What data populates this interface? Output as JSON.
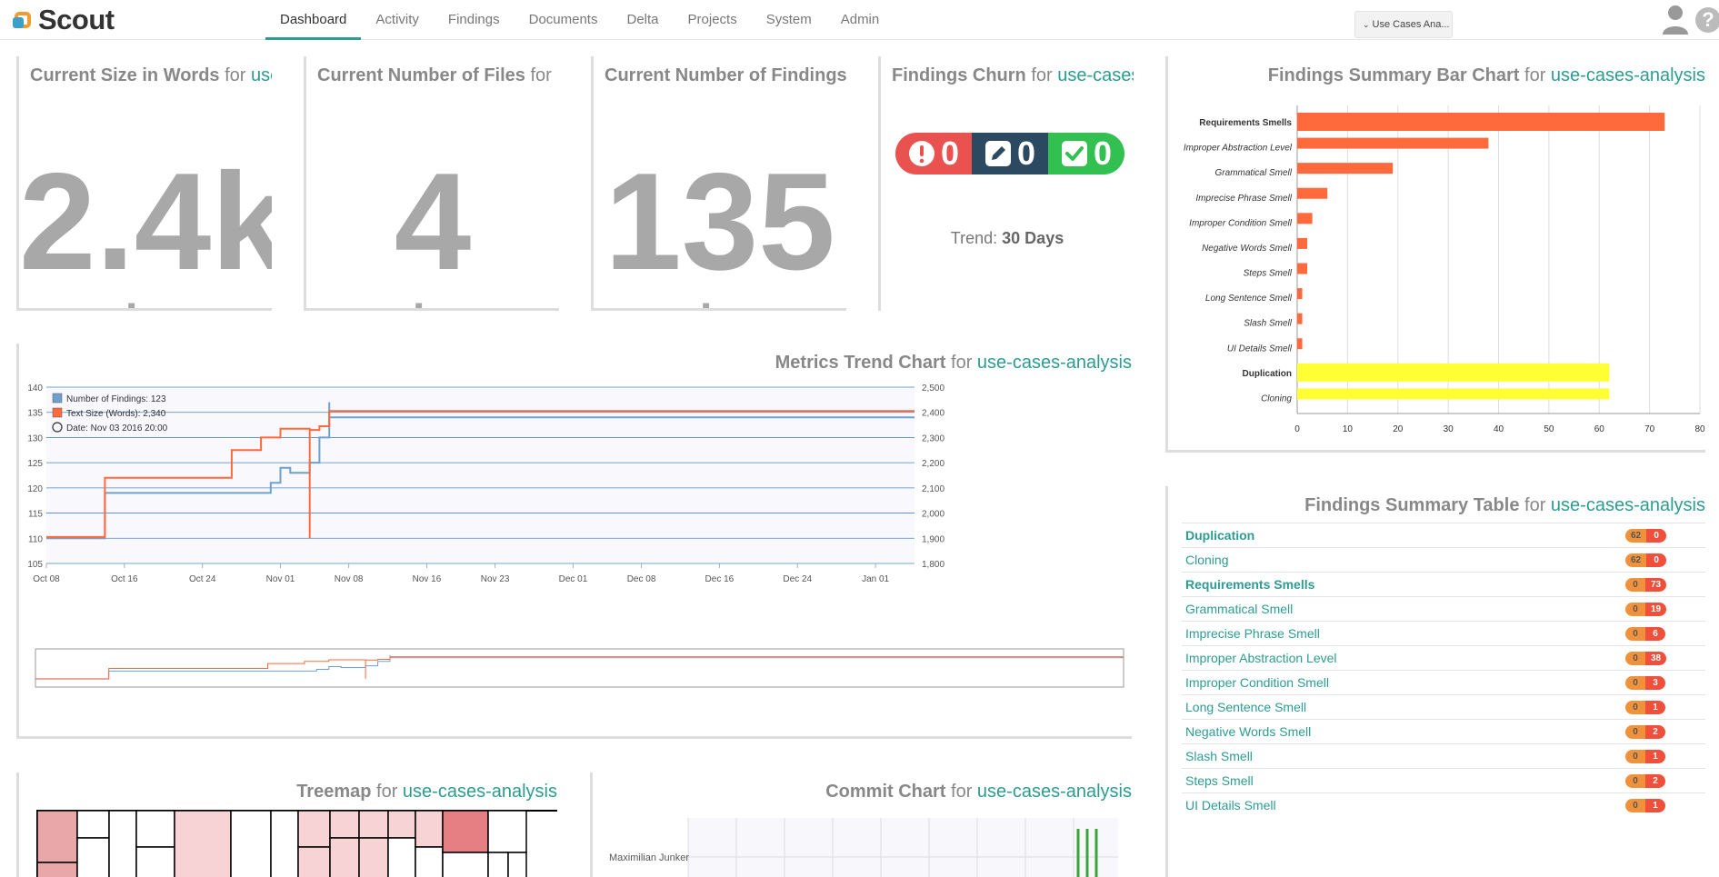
{
  "app": {
    "name": "Scout"
  },
  "nav": {
    "tabs": [
      {
        "label": "Dashboard"
      },
      {
        "label": "Activity"
      },
      {
        "label": "Findings"
      },
      {
        "label": "Documents"
      },
      {
        "label": "Delta"
      },
      {
        "label": "Projects"
      },
      {
        "label": "System"
      },
      {
        "label": "Admin"
      }
    ],
    "project_select": "Use Cases Ana..."
  },
  "widgets": {
    "for_word": "for",
    "project": "use-cases-analysis",
    "size": {
      "title": "Current Size in Words",
      "project_visible": "use",
      "value": "2.4k",
      "change": "no change"
    },
    "files": {
      "title": "Current Number of Files",
      "value": "4",
      "change": "no change"
    },
    "findings": {
      "title": "Current Number of Findings",
      "value": "135",
      "change": "no change"
    },
    "churn": {
      "title": "Findings Churn",
      "added": "0",
      "changed": "0",
      "removed": "0",
      "trend_label": "Trend:",
      "trend_value": "30 Days",
      "colors": {
        "added": "#e9524f",
        "changed": "#2b4a61",
        "removed": "#32c050"
      }
    },
    "trend": {
      "title": "Metrics Trend Chart"
    },
    "bar": {
      "title": "Findings Summary Bar Chart"
    },
    "table": {
      "title": "Findings Summary Table"
    },
    "treemap": {
      "title": "Treemap"
    },
    "commit": {
      "title": "Commit Chart",
      "author": "Maximilian Junker"
    }
  },
  "chart_data": [
    {
      "type": "line",
      "title": "Metrics Trend Chart",
      "x_labels": [
        "Oct 08",
        "Oct 16",
        "Oct 24",
        "Nov 01",
        "Nov 08",
        "Nov 16",
        "Nov 23",
        "Dec 01",
        "Dec 08",
        "Dec 16",
        "Dec 24",
        "Jan 01"
      ],
      "y_left": {
        "ticks": [
          "140",
          "135",
          "130",
          "125",
          "120",
          "115",
          "110",
          "105"
        ],
        "range": [
          105,
          140
        ]
      },
      "y_right": {
        "ticks": [
          "2,500",
          "2,400",
          "2,300",
          "2,200",
          "2,100",
          "2,000",
          "1,900",
          "1,800"
        ],
        "range": [
          1800,
          2500
        ]
      },
      "legend": [
        {
          "name": "Number of Findings: 123",
          "color": "#6ea1cf"
        },
        {
          "name": "Text Size (Words): 2,340",
          "color": "#ff6a3d"
        },
        {
          "name": "Date: Nov 03 2016 20:00"
        }
      ],
      "series": [
        {
          "name": "Number of Findings",
          "axis": "left",
          "points": [
            [
              "2016-10-08",
              110
            ],
            [
              "2016-10-14",
              110
            ],
            [
              "2016-10-14",
              119
            ],
            [
              "2016-10-31",
              119
            ],
            [
              "2016-10-31",
              121
            ],
            [
              "2016-11-01",
              121
            ],
            [
              "2016-11-01",
              124
            ],
            [
              "2016-11-02",
              124
            ],
            [
              "2016-11-02",
              123
            ],
            [
              "2016-11-04",
              123
            ],
            [
              "2016-11-04",
              125
            ],
            [
              "2016-11-05",
              125
            ],
            [
              "2016-11-05",
              130
            ],
            [
              "2016-11-06",
              130
            ],
            [
              "2016-11-06",
              137
            ],
            [
              "2016-11-06",
              134
            ],
            [
              "2017-01-05",
              134
            ]
          ]
        },
        {
          "name": "Text Size (Words)",
          "axis": "right",
          "points": [
            [
              "2016-10-08",
              1905
            ],
            [
              "2016-10-14",
              1905
            ],
            [
              "2016-10-14",
              2140
            ],
            [
              "2016-10-27",
              2140
            ],
            [
              "2016-10-27",
              2250
            ],
            [
              "2016-10-30",
              2250
            ],
            [
              "2016-10-30",
              2300
            ],
            [
              "2016-11-01",
              2300
            ],
            [
              "2016-11-01",
              2335
            ],
            [
              "2016-11-04",
              2335
            ],
            [
              "2016-11-04",
              1900
            ],
            [
              "2016-11-04",
              2330
            ],
            [
              "2016-11-05",
              2330
            ],
            [
              "2016-11-05",
              2345
            ],
            [
              "2016-11-06",
              2345
            ],
            [
              "2016-11-06",
              2405
            ],
            [
              "2017-01-05",
              2405
            ]
          ]
        }
      ]
    },
    {
      "type": "bar",
      "title": "Findings Summary Bar Chart",
      "categories": [
        "Requirements Smells",
        "Improper Abstraction Level",
        "Grammatical Smell",
        "Imprecise Phrase Smell",
        "Improper Condition Smell",
        "Negative Words Smell",
        "Steps Smell",
        "Long Sentence Smell",
        "Slash Smell",
        "UI Details Smell",
        "Duplication",
        "Cloning"
      ],
      "bold_categories": [
        "Requirements Smells",
        "Duplication"
      ],
      "values": [
        73,
        38,
        19,
        6,
        3,
        2,
        2,
        1,
        1,
        1,
        62,
        62
      ],
      "colors": [
        "#ff6a3d",
        "#ff6a3d",
        "#ff6a3d",
        "#ff6a3d",
        "#ff6a3d",
        "#ff6a3d",
        "#ff6a3d",
        "#ff6a3d",
        "#ff6a3d",
        "#ff6a3d",
        "#ffff33",
        "#ffff33"
      ],
      "x_ticks": [
        "0",
        "10",
        "20",
        "30",
        "40",
        "50",
        "60",
        "70",
        "80"
      ],
      "xlim": [
        0,
        80
      ],
      "grid": true
    },
    {
      "type": "table",
      "title": "Findings Summary Table",
      "rows": [
        {
          "label": "Duplication",
          "bold": true,
          "a": "62",
          "b": "0"
        },
        {
          "label": "Cloning",
          "bold": false,
          "a": "62",
          "b": "0"
        },
        {
          "label": "Requirements Smells",
          "bold": true,
          "a": "0",
          "b": "73"
        },
        {
          "label": "Grammatical Smell",
          "bold": false,
          "a": "0",
          "b": "19"
        },
        {
          "label": "Imprecise Phrase Smell",
          "bold": false,
          "a": "0",
          "b": "6"
        },
        {
          "label": "Improper Abstraction Level",
          "bold": false,
          "a": "0",
          "b": "38"
        },
        {
          "label": "Improper Condition Smell",
          "bold": false,
          "a": "0",
          "b": "3"
        },
        {
          "label": "Long Sentence Smell",
          "bold": false,
          "a": "0",
          "b": "1"
        },
        {
          "label": "Negative Words Smell",
          "bold": false,
          "a": "0",
          "b": "2"
        },
        {
          "label": "Slash Smell",
          "bold": false,
          "a": "0",
          "b": "1"
        },
        {
          "label": "Steps Smell",
          "bold": false,
          "a": "0",
          "b": "2"
        },
        {
          "label": "UI Details Smell",
          "bold": false,
          "a": "0",
          "b": "1"
        }
      ]
    }
  ]
}
